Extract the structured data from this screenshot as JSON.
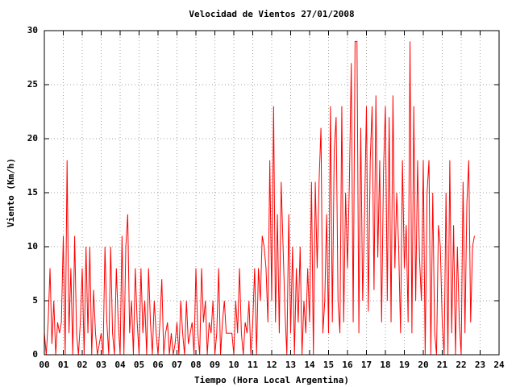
{
  "chart_data": {
    "type": "line",
    "title": "Velocidad de Vientos 27/01/2008",
    "xlabel": "Tiempo (Hora Local Argentina)",
    "ylabel": "Viento (Km/h)",
    "xlim": [
      0,
      24
    ],
    "xticks": [
      {
        "value": 0,
        "label": "00"
      },
      {
        "value": 1,
        "label": "01"
      },
      {
        "value": 2,
        "label": "02"
      },
      {
        "value": 3,
        "label": "03"
      },
      {
        "value": 4,
        "label": "04"
      },
      {
        "value": 5,
        "label": "05"
      },
      {
        "value": 6,
        "label": "06"
      },
      {
        "value": 7,
        "label": "07"
      },
      {
        "value": 8,
        "label": "08"
      },
      {
        "value": 9,
        "label": "09"
      },
      10,
      11,
      12,
      13,
      14,
      15,
      16,
      17,
      18,
      19,
      20,
      21,
      22,
      23,
      24
    ],
    "ylim": [
      0,
      30
    ],
    "yticks": [
      0,
      5,
      10,
      15,
      20,
      25,
      30
    ],
    "grid": true,
    "color": "#ff0000",
    "x": [
      0,
      0.1,
      0.2,
      0.3,
      0.4,
      0.5,
      0.6,
      0.7,
      0.8,
      0.9,
      1,
      1.1,
      1.2,
      1.3,
      1.4,
      1.5,
      1.6,
      1.7,
      1.8,
      1.9,
      2,
      2.1,
      2.2,
      2.3,
      2.4,
      2.5,
      2.6,
      2.7,
      2.8,
      2.9,
      3,
      3.1,
      3.2,
      3.3,
      3.4,
      3.5,
      3.6,
      3.7,
      3.8,
      3.9,
      4,
      4.1,
      4.2,
      4.3,
      4.4,
      4.5,
      4.6,
      4.7,
      4.8,
      4.9,
      5,
      5.1,
      5.2,
      5.3,
      5.4,
      5.5,
      5.6,
      5.7,
      5.8,
      5.9,
      6,
      6.1,
      6.2,
      6.3,
      6.4,
      6.5,
      6.6,
      6.7,
      6.8,
      6.9,
      7,
      7.1,
      7.2,
      7.3,
      7.4,
      7.5,
      7.6,
      7.7,
      7.8,
      7.9,
      8,
      8.1,
      8.2,
      8.3,
      8.4,
      8.5,
      8.6,
      8.7,
      8.8,
      8.9,
      9,
      9.1,
      9.2,
      9.3,
      9.4,
      9.5,
      9.6,
      9.7,
      9.8,
      9.9,
      10,
      10.1,
      10.2,
      10.3,
      10.4,
      10.5,
      10.6,
      10.7,
      10.8,
      10.9,
      11,
      11.1,
      11.2,
      11.3,
      11.4,
      11.5,
      11.6,
      11.7,
      11.8,
      11.9,
      12,
      12.1,
      12.2,
      12.3,
      12.4,
      12.5,
      12.6,
      12.7,
      12.8,
      12.9,
      13,
      13.1,
      13.2,
      13.3,
      13.4,
      13.5,
      13.6,
      13.7,
      13.8,
      13.9,
      14,
      14.1,
      14.2,
      14.3,
      14.4,
      14.5,
      14.6,
      14.7,
      14.8,
      14.9,
      15,
      15.1,
      15.2,
      15.3,
      15.4,
      15.5,
      15.6,
      15.7,
      15.8,
      15.9,
      16,
      16.1,
      16.2,
      16.3,
      16.4,
      16.5,
      16.6,
      16.7,
      16.8,
      16.9,
      17,
      17.1,
      17.2,
      17.3,
      17.4,
      17.5,
      17.6,
      17.7,
      17.8,
      17.9,
      18,
      18.1,
      18.2,
      18.3,
      18.4,
      18.5,
      18.6,
      18.7,
      18.8,
      18.9,
      19,
      19.1,
      19.2,
      19.3,
      19.4,
      19.5,
      19.6,
      19.7,
      19.8,
      19.9,
      20,
      20.1,
      20.2,
      20.3,
      20.4,
      20.5,
      20.6,
      20.7,
      20.8,
      20.9,
      21,
      21.1,
      21.2,
      21.3,
      21.4,
      21.5,
      21.6,
      21.7,
      21.8,
      21.9,
      22,
      22.1,
      22.2,
      22.3,
      22.4,
      22.5,
      22.6,
      22.7
    ],
    "values": [
      2,
      0,
      3,
      8,
      1,
      5,
      0,
      3,
      2,
      3,
      11,
      0,
      18,
      2,
      8,
      0,
      11,
      2,
      0,
      3,
      8,
      0,
      10,
      2,
      10,
      0,
      6,
      2,
      0,
      1,
      2,
      0,
      10,
      3,
      0,
      10,
      2,
      0,
      8,
      3,
      0,
      11,
      0,
      10,
      13,
      2,
      5,
      0,
      8,
      3,
      0,
      8,
      2,
      5,
      0,
      8,
      3,
      0,
      5,
      2,
      0,
      3,
      7,
      0,
      2,
      3,
      0,
      2,
      0,
      1,
      3,
      0,
      5,
      2,
      0,
      5,
      1,
      2,
      3,
      0,
      8,
      2,
      0,
      8,
      3,
      5,
      0,
      3,
      2,
      5,
      0,
      2,
      8,
      0,
      3,
      5,
      2,
      2,
      2,
      2,
      0,
      5,
      2,
      8,
      2,
      0,
      3,
      2,
      5,
      0,
      3,
      8,
      0,
      8,
      5,
      11,
      10,
      8,
      3,
      18,
      5,
      23,
      3,
      13,
      2,
      16,
      10,
      4,
      0,
      13,
      2,
      10,
      0,
      8,
      3,
      10,
      0,
      5,
      2,
      8,
      3,
      16,
      0,
      16,
      8,
      16,
      21,
      2,
      5,
      13,
      2,
      23,
      3,
      19,
      22,
      5,
      2,
      23,
      3,
      15,
      8,
      16,
      27,
      3,
      29,
      29,
      2,
      21,
      5,
      13,
      23,
      4,
      18,
      23,
      6,
      24,
      9,
      18,
      3,
      17,
      23,
      5,
      22,
      3,
      24,
      8,
      15,
      10,
      2,
      18,
      8,
      12,
      3,
      29,
      2,
      23,
      5,
      18,
      9,
      5,
      18,
      0,
      15,
      18,
      0,
      15,
      2,
      0,
      12,
      10,
      3,
      0,
      15,
      0,
      18,
      2,
      12,
      0,
      10,
      3,
      0,
      16,
      2,
      14,
      18,
      3,
      10,
      11
    ]
  }
}
